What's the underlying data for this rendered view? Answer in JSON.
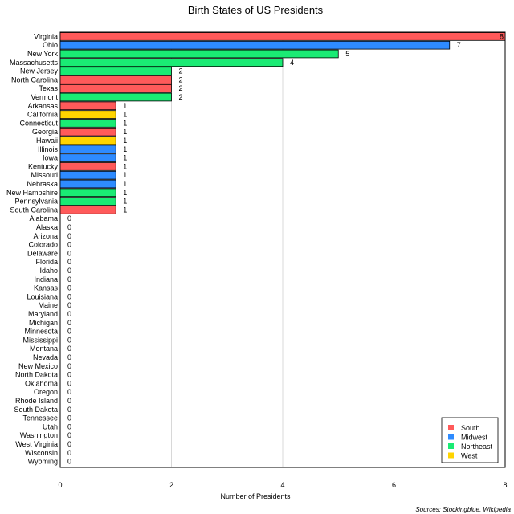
{
  "chart_data": {
    "type": "bar",
    "orientation": "horizontal",
    "title": "Birth States of US Presidents",
    "xlabel": "Number of Presidents",
    "ylabel": "",
    "xlim": [
      0,
      8
    ],
    "xticks": [
      0,
      2,
      4,
      6,
      8
    ],
    "grid": true,
    "legend_position": "bottom-right",
    "source": "Sources: Stockingblue, Wikipedia",
    "regions": [
      {
        "name": "South",
        "color": "#ff5a5a"
      },
      {
        "name": "Midwest",
        "color": "#2e8bff"
      },
      {
        "name": "Northeast",
        "color": "#1aeb74"
      },
      {
        "name": "West",
        "color": "#ffd400"
      }
    ],
    "bars": [
      {
        "label": "Virginia",
        "value": 8,
        "region": "South"
      },
      {
        "label": "Ohio",
        "value": 7,
        "region": "Midwest"
      },
      {
        "label": "New York",
        "value": 5,
        "region": "Northeast"
      },
      {
        "label": "Massachusetts",
        "value": 4,
        "region": "Northeast"
      },
      {
        "label": "New Jersey",
        "value": 2,
        "region": "Northeast"
      },
      {
        "label": "North Carolina",
        "value": 2,
        "region": "South"
      },
      {
        "label": "Texas",
        "value": 2,
        "region": "South"
      },
      {
        "label": "Vermont",
        "value": 2,
        "region": "Northeast"
      },
      {
        "label": "Arkansas",
        "value": 1,
        "region": "South"
      },
      {
        "label": "California",
        "value": 1,
        "region": "West"
      },
      {
        "label": "Connecticut",
        "value": 1,
        "region": "Northeast"
      },
      {
        "label": "Georgia",
        "value": 1,
        "region": "South"
      },
      {
        "label": "Hawaii",
        "value": 1,
        "region": "West"
      },
      {
        "label": "Illinois",
        "value": 1,
        "region": "Midwest"
      },
      {
        "label": "Iowa",
        "value": 1,
        "region": "Midwest"
      },
      {
        "label": "Kentucky",
        "value": 1,
        "region": "South"
      },
      {
        "label": "Missouri",
        "value": 1,
        "region": "Midwest"
      },
      {
        "label": "Nebraska",
        "value": 1,
        "region": "Midwest"
      },
      {
        "label": "New Hampshire",
        "value": 1,
        "region": "Northeast"
      },
      {
        "label": "Pennsylvania",
        "value": 1,
        "region": "Northeast"
      },
      {
        "label": "South Carolina",
        "value": 1,
        "region": "South"
      },
      {
        "label": "Alabama",
        "value": 0,
        "region": "South"
      },
      {
        "label": "Alaska",
        "value": 0,
        "region": "West"
      },
      {
        "label": "Arizona",
        "value": 0,
        "region": "West"
      },
      {
        "label": "Colorado",
        "value": 0,
        "region": "West"
      },
      {
        "label": "Delaware",
        "value": 0,
        "region": "South"
      },
      {
        "label": "Florida",
        "value": 0,
        "region": "South"
      },
      {
        "label": "Idaho",
        "value": 0,
        "region": "West"
      },
      {
        "label": "Indiana",
        "value": 0,
        "region": "Midwest"
      },
      {
        "label": "Kansas",
        "value": 0,
        "region": "Midwest"
      },
      {
        "label": "Louisiana",
        "value": 0,
        "region": "South"
      },
      {
        "label": "Maine",
        "value": 0,
        "region": "Northeast"
      },
      {
        "label": "Maryland",
        "value": 0,
        "region": "South"
      },
      {
        "label": "Michigan",
        "value": 0,
        "region": "Midwest"
      },
      {
        "label": "Minnesota",
        "value": 0,
        "region": "Midwest"
      },
      {
        "label": "Mississippi",
        "value": 0,
        "region": "South"
      },
      {
        "label": "Montana",
        "value": 0,
        "region": "West"
      },
      {
        "label": "Nevada",
        "value": 0,
        "region": "West"
      },
      {
        "label": "New Mexico",
        "value": 0,
        "region": "West"
      },
      {
        "label": "North Dakota",
        "value": 0,
        "region": "Midwest"
      },
      {
        "label": "Oklahoma",
        "value": 0,
        "region": "South"
      },
      {
        "label": "Oregon",
        "value": 0,
        "region": "West"
      },
      {
        "label": "Rhode Island",
        "value": 0,
        "region": "Northeast"
      },
      {
        "label": "South Dakota",
        "value": 0,
        "region": "Midwest"
      },
      {
        "label": "Tennessee",
        "value": 0,
        "region": "South"
      },
      {
        "label": "Utah",
        "value": 0,
        "region": "West"
      },
      {
        "label": "Washington",
        "value": 0,
        "region": "West"
      },
      {
        "label": "West Virginia",
        "value": 0,
        "region": "South"
      },
      {
        "label": "Wisconsin",
        "value": 0,
        "region": "Midwest"
      },
      {
        "label": "Wyoming",
        "value": 0,
        "region": "West"
      }
    ]
  }
}
